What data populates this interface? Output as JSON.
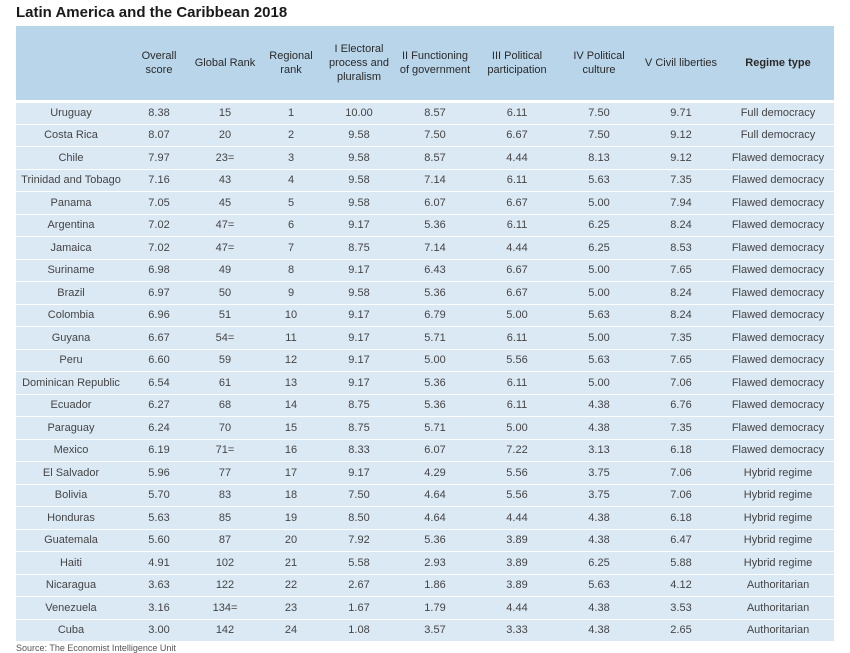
{
  "title": "Latin America and the Caribbean 2018",
  "columns": [
    "",
    "Overall score",
    "Global Rank",
    "Regional rank",
    "I Electoral process and pluralism",
    "II Functioning of government",
    "III Political participation",
    "IV Political culture",
    "V Civil liberties",
    "Regime type"
  ],
  "rows": [
    [
      "Uruguay",
      "8.38",
      "15",
      "1",
      "10.00",
      "8.57",
      "6.11",
      "7.50",
      "9.71",
      "Full democracy"
    ],
    [
      "Costa Rica",
      "8.07",
      "20",
      "2",
      "9.58",
      "7.50",
      "6.67",
      "7.50",
      "9.12",
      "Full democracy"
    ],
    [
      "Chile",
      "7.97",
      "23=",
      "3",
      "9.58",
      "8.57",
      "4.44",
      "8.13",
      "9.12",
      "Flawed democracy"
    ],
    [
      "Trinidad and Tobago",
      "7.16",
      "43",
      "4",
      "9.58",
      "7.14",
      "6.11",
      "5.63",
      "7.35",
      "Flawed democracy"
    ],
    [
      "Panama",
      "7.05",
      "45",
      "5",
      "9.58",
      "6.07",
      "6.67",
      "5.00",
      "7.94",
      "Flawed democracy"
    ],
    [
      "Argentina",
      "7.02",
      "47=",
      "6",
      "9.17",
      "5.36",
      "6.11",
      "6.25",
      "8.24",
      "Flawed democracy"
    ],
    [
      "Jamaica",
      "7.02",
      "47=",
      "7",
      "8.75",
      "7.14",
      "4.44",
      "6.25",
      "8.53",
      "Flawed democracy"
    ],
    [
      "Suriname",
      "6.98",
      "49",
      "8",
      "9.17",
      "6.43",
      "6.67",
      "5.00",
      "7.65",
      "Flawed democracy"
    ],
    [
      "Brazil",
      "6.97",
      "50",
      "9",
      "9.58",
      "5.36",
      "6.67",
      "5.00",
      "8.24",
      "Flawed democracy"
    ],
    [
      "Colombia",
      "6.96",
      "51",
      "10",
      "9.17",
      "6.79",
      "5.00",
      "5.63",
      "8.24",
      "Flawed democracy"
    ],
    [
      "Guyana",
      "6.67",
      "54=",
      "11",
      "9.17",
      "5.71",
      "6.11",
      "5.00",
      "7.35",
      "Flawed democracy"
    ],
    [
      "Peru",
      "6.60",
      "59",
      "12",
      "9.17",
      "5.00",
      "5.56",
      "5.63",
      "7.65",
      "Flawed democracy"
    ],
    [
      "Dominican Republic",
      "6.54",
      "61",
      "13",
      "9.17",
      "5.36",
      "6.11",
      "5.00",
      "7.06",
      "Flawed democracy"
    ],
    [
      "Ecuador",
      "6.27",
      "68",
      "14",
      "8.75",
      "5.36",
      "6.11",
      "4.38",
      "6.76",
      "Flawed democracy"
    ],
    [
      "Paraguay",
      "6.24",
      "70",
      "15",
      "8.75",
      "5.71",
      "5.00",
      "4.38",
      "7.35",
      "Flawed democracy"
    ],
    [
      "Mexico",
      "6.19",
      "71=",
      "16",
      "8.33",
      "6.07",
      "7.22",
      "3.13",
      "6.18",
      "Flawed democracy"
    ],
    [
      "El Salvador",
      "5.96",
      "77",
      "17",
      "9.17",
      "4.29",
      "5.56",
      "3.75",
      "7.06",
      "Hybrid regime"
    ],
    [
      "Bolivia",
      "5.70",
      "83",
      "18",
      "7.50",
      "4.64",
      "5.56",
      "3.75",
      "7.06",
      "Hybrid regime"
    ],
    [
      "Honduras",
      "5.63",
      "85",
      "19",
      "8.50",
      "4.64",
      "4.44",
      "4.38",
      "6.18",
      "Hybrid regime"
    ],
    [
      "Guatemala",
      "5.60",
      "87",
      "20",
      "7.92",
      "5.36",
      "3.89",
      "4.38",
      "6.47",
      "Hybrid regime"
    ],
    [
      "Haiti",
      "4.91",
      "102",
      "21",
      "5.58",
      "2.93",
      "3.89",
      "6.25",
      "5.88",
      "Hybrid regime"
    ],
    [
      "Nicaragua",
      "3.63",
      "122",
      "22",
      "2.67",
      "1.86",
      "3.89",
      "5.63",
      "4.12",
      "Authoritarian"
    ],
    [
      "Venezuela",
      "3.16",
      "134=",
      "23",
      "1.67",
      "1.79",
      "4.44",
      "4.38",
      "3.53",
      "Authoritarian"
    ],
    [
      "Cuba",
      "3.00",
      "142",
      "24",
      "1.08",
      "3.57",
      "3.33",
      "4.38",
      "2.65",
      "Authoritarian"
    ]
  ],
  "footer": "Source: The Economist Intelligence Unit"
}
